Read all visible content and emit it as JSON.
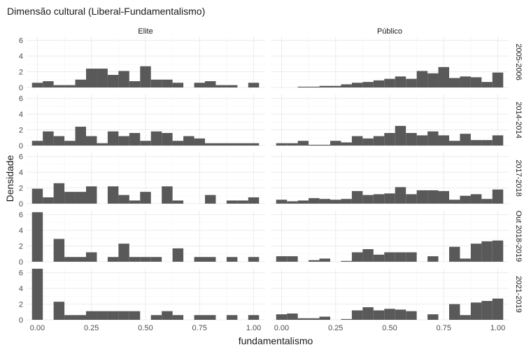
{
  "chart_data": {
    "type": "bar",
    "title": "Dimensão cultural (Liberal-Fundamentalismo)",
    "xlabel": "fundamentalismo",
    "ylabel": "Densidade",
    "xlim": [
      -0.05,
      1.05
    ],
    "ylim": [
      0,
      6.5
    ],
    "x_ticks": [
      "0.00",
      "0.25",
      "0.50",
      "0.75",
      "1.00"
    ],
    "x_tick_values": [
      0,
      0.25,
      0.5,
      0.75,
      1.0
    ],
    "y_ticks": [
      "0",
      "2",
      "4",
      "6"
    ],
    "y_tick_values": [
      0,
      2,
      4,
      6
    ],
    "bin_width": 0.05,
    "bin_starts": [
      -0.025,
      0.025,
      0.075,
      0.125,
      0.175,
      0.225,
      0.275,
      0.325,
      0.375,
      0.425,
      0.475,
      0.525,
      0.575,
      0.625,
      0.675,
      0.725,
      0.775,
      0.825,
      0.875,
      0.925,
      0.975
    ],
    "columns": [
      "Elite",
      "Público"
    ],
    "rows": [
      "2005-2006",
      "2014-2014",
      "2017-2018",
      "Out 2018-2019",
      "2021-2019"
    ],
    "panels": [
      {
        "row": "2005-2006",
        "column": "Elite",
        "values": [
          0.6,
          0.8,
          0.3,
          0.3,
          1.0,
          2.4,
          2.4,
          1.6,
          2.1,
          0.8,
          2.7,
          1.0,
          1.0,
          0.6,
          0,
          0.6,
          0.8,
          0.3,
          0.3,
          0,
          0.6
        ]
      },
      {
        "row": "2005-2006",
        "column": "Público",
        "values": [
          0,
          0,
          0.1,
          0.1,
          0.2,
          0.2,
          0.4,
          0.6,
          0.7,
          0.9,
          1.1,
          1.4,
          1.1,
          2.1,
          1.8,
          2.6,
          1.2,
          1.4,
          1.3,
          0.7,
          1.9
        ]
      },
      {
        "row": "2014-2014",
        "column": "Elite",
        "values": [
          0.6,
          1.8,
          1.2,
          0.6,
          2.4,
          1.2,
          0.3,
          1.8,
          1.2,
          1.6,
          0.6,
          1.8,
          1.6,
          0.6,
          1.2,
          0.9,
          0.3,
          0.3,
          0.3,
          0.3,
          0.3
        ]
      },
      {
        "row": "2014-2014",
        "column": "Público",
        "values": [
          0.3,
          0.3,
          0.6,
          0.1,
          0.1,
          0.6,
          0.4,
          1.2,
          0.9,
          1.2,
          1.6,
          2.5,
          1.6,
          1.3,
          1.8,
          1.3,
          0.6,
          1.5,
          0.7,
          0.7,
          1.3
        ]
      },
      {
        "row": "2017-2018",
        "column": "Elite",
        "values": [
          1.9,
          0.8,
          2.6,
          1.5,
          1.5,
          2.2,
          0,
          2.2,
          1.1,
          0.4,
          1.5,
          0,
          2.2,
          0.4,
          0,
          0,
          1.1,
          0,
          0.4,
          0.4,
          0.8
        ]
      },
      {
        "row": "2017-2018",
        "column": "Público",
        "values": [
          0.5,
          0.3,
          0.4,
          0.7,
          0.6,
          0.5,
          0.6,
          1.6,
          1.1,
          1.2,
          1.3,
          2.1,
          1.2,
          1.7,
          1.7,
          1.6,
          0.5,
          1.0,
          1.2,
          0.6,
          1.8
        ]
      },
      {
        "row": "Out 2018-2019",
        "column": "Elite",
        "values": [
          6.3,
          0,
          2.9,
          0.6,
          0.6,
          1.2,
          0,
          0.6,
          2.3,
          0.6,
          0.6,
          0.6,
          0,
          1.7,
          0,
          0.6,
          0.6,
          0,
          0.6,
          0,
          0.6
        ]
      },
      {
        "row": "Out 2018-2019",
        "column": "Público",
        "values": [
          0.7,
          0.7,
          0,
          0.2,
          0.4,
          0,
          0.1,
          1.2,
          1.6,
          0.9,
          1.2,
          1.2,
          1.2,
          0,
          0.7,
          0,
          1.9,
          0.4,
          2.3,
          2.6,
          2.7
        ]
      },
      {
        "row": "2021-2019",
        "column": "Elite",
        "values": [
          6.5,
          0,
          2.3,
          0.6,
          0.6,
          1.1,
          1.1,
          1.1,
          1.1,
          1.1,
          0,
          0.6,
          1.1,
          0.6,
          0,
          0.6,
          0.6,
          0,
          0.6,
          0,
          0.6
        ]
      },
      {
        "row": "2021-2019",
        "column": "Público",
        "values": [
          0.7,
          0.8,
          0.2,
          0.2,
          0.4,
          0,
          0.1,
          1.2,
          1.6,
          1.2,
          1.4,
          1.3,
          1.1,
          0,
          0.7,
          0,
          2.0,
          0.6,
          2.2,
          2.4,
          2.7
        ]
      }
    ]
  }
}
